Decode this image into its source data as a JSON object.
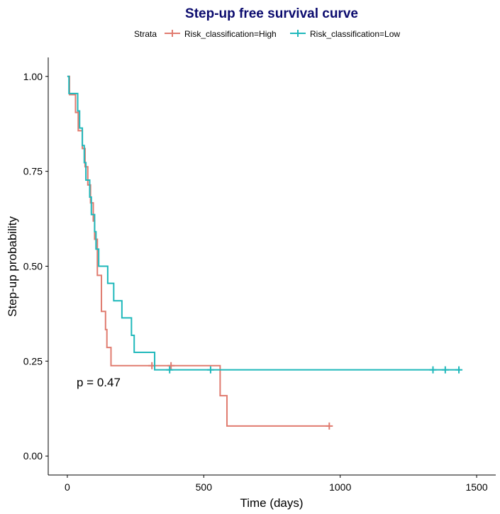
{
  "chart_data": {
    "type": "line",
    "title": "Step-up free survival curve",
    "xlabel": "Time (days)",
    "ylabel": "Step-up probability",
    "xlim": [
      -70,
      1570
    ],
    "ylim": [
      -0.05,
      1.05
    ],
    "xticks": [
      0,
      500,
      1000,
      1500
    ],
    "yticks": [
      0.0,
      0.25,
      0.5,
      0.75,
      1.0
    ],
    "ytick_labels": [
      "0.00",
      "0.25",
      "0.50",
      "0.75",
      "1.00"
    ],
    "xtick_labels": [
      "0",
      "500",
      "1000",
      "1500"
    ],
    "grid": false,
    "legend_position": "top",
    "legend_title": "Strata",
    "annotation": "p = 0.47",
    "colors": {
      "title": "#0b0b6e",
      "high": "#e07b6f",
      "low": "#1fb8bb"
    },
    "series": [
      {
        "name": "Risk_classification=High",
        "steps": [
          [
            0,
            1.0
          ],
          [
            8,
            0.952
          ],
          [
            30,
            0.905
          ],
          [
            40,
            0.857
          ],
          [
            55,
            0.81
          ],
          [
            65,
            0.762
          ],
          [
            75,
            0.714
          ],
          [
            85,
            0.667
          ],
          [
            95,
            0.619
          ],
          [
            100,
            0.571
          ],
          [
            110,
            0.476
          ],
          [
            125,
            0.381
          ],
          [
            140,
            0.333
          ],
          [
            145,
            0.286
          ],
          [
            160,
            0.238
          ],
          [
            560,
            0.159
          ],
          [
            585,
            0.079
          ],
          [
            960,
            0.079
          ]
        ],
        "censored": [
          [
            310,
            0.238
          ],
          [
            380,
            0.238
          ],
          [
            960,
            0.079
          ]
        ]
      },
      {
        "name": "Risk_classification=Low",
        "steps": [
          [
            0,
            1.0
          ],
          [
            6,
            0.955
          ],
          [
            38,
            0.909
          ],
          [
            45,
            0.864
          ],
          [
            55,
            0.818
          ],
          [
            62,
            0.773
          ],
          [
            68,
            0.727
          ],
          [
            82,
            0.682
          ],
          [
            88,
            0.636
          ],
          [
            100,
            0.591
          ],
          [
            105,
            0.545
          ],
          [
            115,
            0.5
          ],
          [
            148,
            0.455
          ],
          [
            170,
            0.409
          ],
          [
            200,
            0.364
          ],
          [
            235,
            0.318
          ],
          [
            245,
            0.273
          ],
          [
            320,
            0.227
          ],
          [
            1440,
            0.227
          ]
        ],
        "censored": [
          [
            375,
            0.227
          ],
          [
            525,
            0.227
          ],
          [
            1340,
            0.227
          ],
          [
            1385,
            0.227
          ],
          [
            1435,
            0.227
          ]
        ]
      }
    ]
  }
}
